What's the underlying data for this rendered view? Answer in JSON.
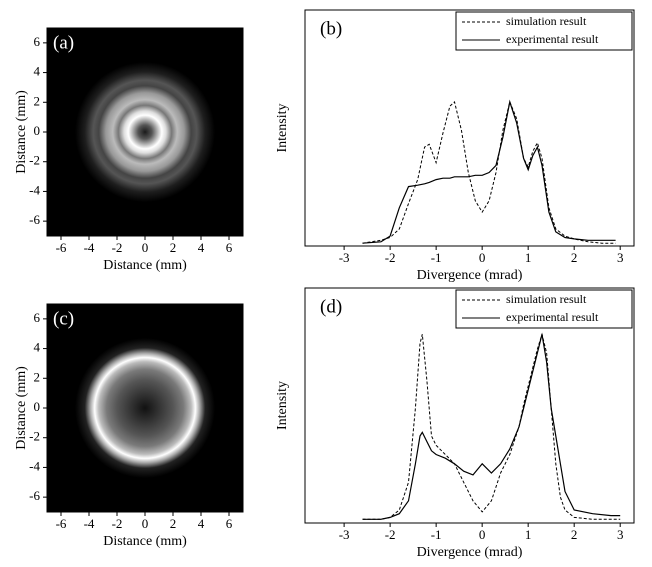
{
  "chart_data": [
    {
      "type": "image",
      "panel_label": "(a)",
      "xlabel": "Distance (mm)",
      "ylabel": "Distance (mm)",
      "xlim": [
        -7,
        7
      ],
      "ylim": [
        -7,
        7
      ],
      "xticks": [
        -6,
        -4,
        -2,
        0,
        2,
        4,
        6
      ],
      "yticks": [
        -6,
        -4,
        -2,
        0,
        2,
        4,
        6
      ]
    },
    {
      "type": "line",
      "panel_label": "(b)",
      "xlabel": "Divergence (mrad)",
      "ylabel": "Intensity",
      "xlim": [
        -3.85,
        3.3
      ],
      "ylim": [
        -0.02,
        1.65
      ],
      "xticks": [
        -3,
        -2,
        -1,
        0,
        1,
        2,
        3
      ],
      "legend": "upper right",
      "x": [
        -2.6,
        -2.2,
        -2.0,
        -1.8,
        -1.6,
        -1.4,
        -1.25,
        -1.15,
        -1.0,
        -0.85,
        -0.7,
        -0.6,
        -0.45,
        -0.3,
        -0.15,
        0,
        0.15,
        0.3,
        0.45,
        0.6,
        0.75,
        0.9,
        1.0,
        1.1,
        1.2,
        1.3,
        1.45,
        1.6,
        1.8,
        2.0,
        2.3,
        2.6,
        2.9
      ],
      "series": [
        {
          "name": "simulation result",
          "color": "#000000",
          "dash": "dashed",
          "values": [
            0.0,
            0.02,
            0.04,
            0.1,
            0.28,
            0.45,
            0.68,
            0.7,
            0.57,
            0.78,
            0.97,
            1.0,
            0.8,
            0.5,
            0.3,
            0.22,
            0.3,
            0.5,
            0.8,
            1.0,
            0.88,
            0.6,
            0.54,
            0.65,
            0.71,
            0.6,
            0.25,
            0.1,
            0.05,
            0.03,
            0.01,
            0.0,
            0.0
          ]
        },
        {
          "name": "experimental result",
          "color": "#000000",
          "dash": "solid",
          "values": [
            0.0,
            0.01,
            0.05,
            0.25,
            0.4,
            0.41,
            0.42,
            0.43,
            0.45,
            0.46,
            0.46,
            0.47,
            0.47,
            0.47,
            0.48,
            0.48,
            0.5,
            0.55,
            0.75,
            1.0,
            0.85,
            0.6,
            0.52,
            0.62,
            0.68,
            0.55,
            0.22,
            0.08,
            0.04,
            0.03,
            0.02,
            0.02,
            0.02
          ]
        }
      ]
    },
    {
      "type": "image",
      "panel_label": "(c)",
      "xlabel": "Distance (mm)",
      "ylabel": "Distance (mm)",
      "xlim": [
        -7,
        7
      ],
      "ylim": [
        -7,
        7
      ],
      "xticks": [
        -6,
        -4,
        -2,
        0,
        2,
        4,
        6
      ],
      "yticks": [
        -6,
        -4,
        -2,
        0,
        2,
        4,
        6
      ]
    },
    {
      "type": "line",
      "panel_label": "(d)",
      "xlabel": "Divergence (mrad)",
      "ylabel": "Intensity",
      "xlim": [
        -3.85,
        3.3
      ],
      "ylim": [
        -0.02,
        1.25
      ],
      "xticks": [
        -3,
        -2,
        -1,
        0,
        1,
        2,
        3
      ],
      "legend": "upper right",
      "x": [
        -2.6,
        -2.2,
        -2.0,
        -1.8,
        -1.6,
        -1.45,
        -1.35,
        -1.3,
        -1.2,
        -1.1,
        -1.0,
        -0.8,
        -0.6,
        -0.4,
        -0.2,
        0,
        0.2,
        0.4,
        0.6,
        0.8,
        0.9,
        1.0,
        1.1,
        1.2,
        1.3,
        1.4,
        1.5,
        1.6,
        1.7,
        1.8,
        2.0,
        2.4,
        2.8,
        3.0
      ],
      "series": [
        {
          "name": "simulation result",
          "color": "#000000",
          "dash": "dashed",
          "values": [
            0,
            0,
            0.01,
            0.05,
            0.2,
            0.6,
            0.95,
            1.0,
            0.75,
            0.45,
            0.4,
            0.35,
            0.3,
            0.2,
            0.1,
            0.04,
            0.1,
            0.25,
            0.35,
            0.5,
            0.62,
            0.72,
            0.82,
            0.92,
            1.0,
            0.9,
            0.6,
            0.3,
            0.12,
            0.05,
            0.01,
            0,
            0,
            0
          ]
        },
        {
          "name": "experimental result",
          "color": "#000000",
          "dash": "solid",
          "values": [
            0,
            0,
            0.01,
            0.03,
            0.1,
            0.3,
            0.45,
            0.47,
            0.42,
            0.37,
            0.35,
            0.33,
            0.3,
            0.26,
            0.24,
            0.3,
            0.25,
            0.3,
            0.38,
            0.5,
            0.6,
            0.7,
            0.8,
            0.9,
            1.0,
            0.85,
            0.6,
            0.45,
            0.3,
            0.15,
            0.05,
            0.03,
            0.02,
            0.02
          ]
        }
      ]
    }
  ]
}
